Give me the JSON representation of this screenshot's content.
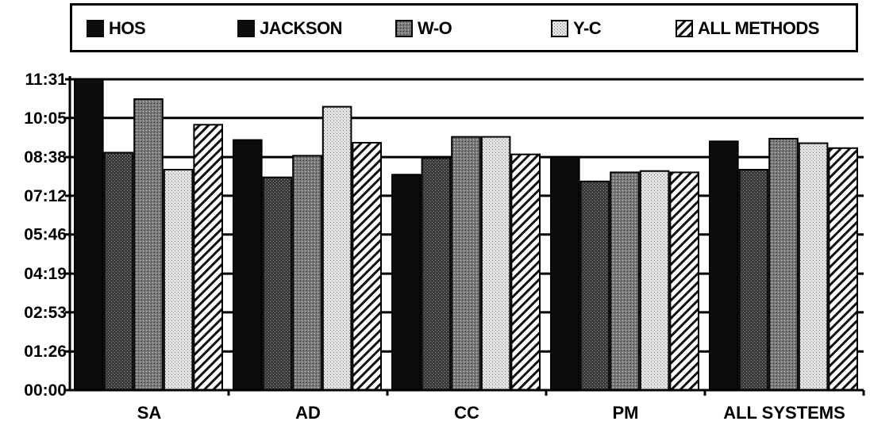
{
  "chart_data": {
    "type": "bar",
    "categories": [
      "SA",
      "AD",
      "CC",
      "PM",
      "ALL SYSTEMS"
    ],
    "series": [
      {
        "name": "HOS",
        "values": [
          "11:31",
          "09:16",
          "07:59",
          "08:38",
          "09:13"
        ],
        "pattern": "solid"
      },
      {
        "name": "JACKSON",
        "values": [
          "08:48",
          "07:53",
          "08:36",
          "07:44",
          "08:10"
        ],
        "pattern": "dark-stipple"
      },
      {
        "name": "W-O",
        "values": [
          "10:47",
          "08:41",
          "09:23",
          "08:04",
          "09:19"
        ],
        "pattern": "medium-stipple"
      },
      {
        "name": "Y-C",
        "values": [
          "08:10",
          "10:30",
          "09:23",
          "08:07",
          "09:09"
        ],
        "pattern": "light-stipple"
      },
      {
        "name": "ALL METHODS",
        "values": [
          "09:50",
          "09:10",
          "08:44",
          "08:04",
          "08:58"
        ],
        "pattern": "hatch"
      }
    ],
    "y_ticks": [
      "00:00",
      "01:26",
      "02:53",
      "04:19",
      "05:46",
      "07:12",
      "08:38",
      "10:05",
      "11:31"
    ],
    "ylim": [
      "00:00",
      "11:31"
    ],
    "grid": true,
    "legend_position": "top"
  },
  "colors": {
    "solid": "#0d0d0d",
    "dark_stipple": "#4a4a4a",
    "medium_stipple": "#8a8a8a",
    "light_stipple": "#d4d4d4",
    "hatch_line": "#111111"
  }
}
